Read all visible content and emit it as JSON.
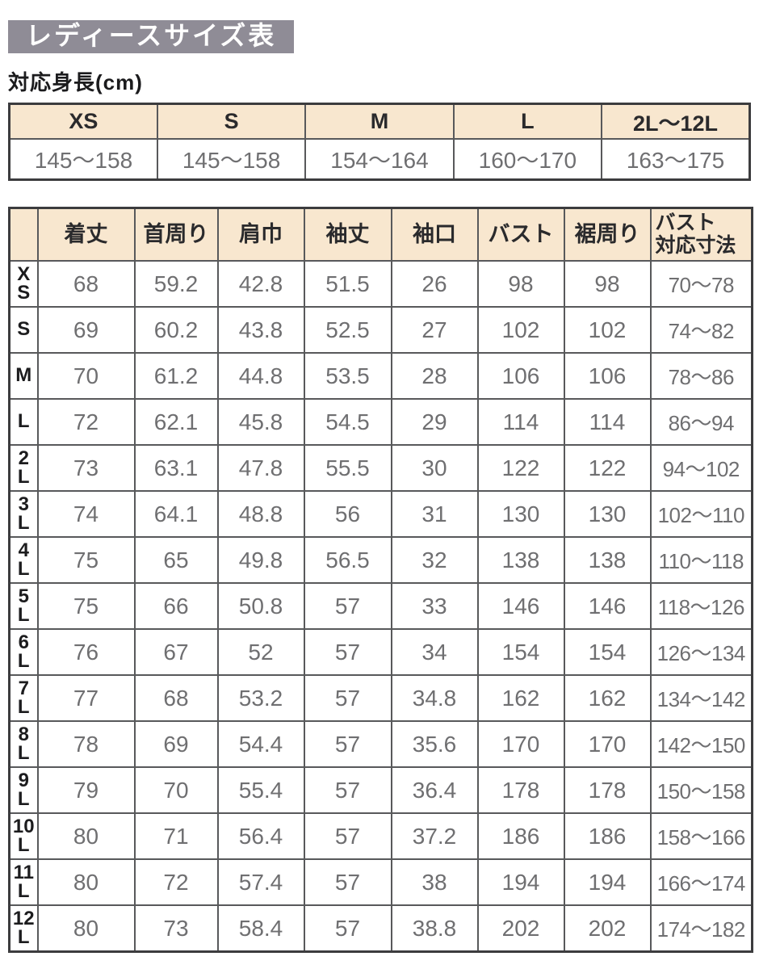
{
  "page": {
    "title": "レディースサイズ表",
    "height_section_label": "対応身長(cm)"
  },
  "colors": {
    "title_bg": "#8f8c96",
    "title_text": "#ffffff",
    "header_bg": "#f8e7cf",
    "grid_border": "#58595b",
    "outer_border": "#3c3c3e",
    "value_text": "#6f6f71",
    "label_text": "#1c1c1e"
  },
  "height_table": {
    "columns": [
      "XS",
      "S",
      "M",
      "L",
      "2L〜12L"
    ],
    "values": [
      "145〜158",
      "145〜158",
      "154〜164",
      "160〜170",
      "163〜175"
    ]
  },
  "size_table": {
    "corner_label": "",
    "columns": [
      "着丈",
      "首周り",
      "肩巾",
      "袖丈",
      "袖口",
      "バスト",
      "裾周り",
      "バスト\n対応寸法"
    ],
    "rows": [
      {
        "size": "XS",
        "size_label": "X\nS",
        "values": [
          "68",
          "59.2",
          "42.8",
          "51.5",
          "26",
          "98",
          "98",
          "70〜78"
        ]
      },
      {
        "size": "S",
        "size_label": "S",
        "values": [
          "69",
          "60.2",
          "43.8",
          "52.5",
          "27",
          "102",
          "102",
          "74〜82"
        ]
      },
      {
        "size": "M",
        "size_label": "M",
        "values": [
          "70",
          "61.2",
          "44.8",
          "53.5",
          "28",
          "106",
          "106",
          "78〜86"
        ]
      },
      {
        "size": "L",
        "size_label": "L",
        "values": [
          "72",
          "62.1",
          "45.8",
          "54.5",
          "29",
          "114",
          "114",
          "86〜94"
        ]
      },
      {
        "size": "2L",
        "size_label": "2\nL",
        "values": [
          "73",
          "63.1",
          "47.8",
          "55.5",
          "30",
          "122",
          "122",
          "94〜102"
        ]
      },
      {
        "size": "3L",
        "size_label": "3\nL",
        "values": [
          "74",
          "64.1",
          "48.8",
          "56",
          "31",
          "130",
          "130",
          "102〜110"
        ]
      },
      {
        "size": "4L",
        "size_label": "4\nL",
        "values": [
          "75",
          "65",
          "49.8",
          "56.5",
          "32",
          "138",
          "138",
          "110〜118"
        ]
      },
      {
        "size": "5L",
        "size_label": "5\nL",
        "values": [
          "75",
          "66",
          "50.8",
          "57",
          "33",
          "146",
          "146",
          "118〜126"
        ]
      },
      {
        "size": "6L",
        "size_label": "6\nL",
        "values": [
          "76",
          "67",
          "52",
          "57",
          "34",
          "154",
          "154",
          "126〜134"
        ]
      },
      {
        "size": "7L",
        "size_label": "7\nL",
        "values": [
          "77",
          "68",
          "53.2",
          "57",
          "34.8",
          "162",
          "162",
          "134〜142"
        ]
      },
      {
        "size": "8L",
        "size_label": "8\nL",
        "values": [
          "78",
          "69",
          "54.4",
          "57",
          "35.6",
          "170",
          "170",
          "142〜150"
        ]
      },
      {
        "size": "9L",
        "size_label": "9\nL",
        "values": [
          "79",
          "70",
          "55.4",
          "57",
          "36.4",
          "178",
          "178",
          "150〜158"
        ]
      },
      {
        "size": "10L",
        "size_label": "10\nL",
        "values": [
          "80",
          "71",
          "56.4",
          "57",
          "37.2",
          "186",
          "186",
          "158〜166"
        ]
      },
      {
        "size": "11L",
        "size_label": "11\nL",
        "values": [
          "80",
          "72",
          "57.4",
          "57",
          "38",
          "194",
          "194",
          "166〜174"
        ]
      },
      {
        "size": "12L",
        "size_label": "12\nL",
        "values": [
          "80",
          "73",
          "58.4",
          "57",
          "38.8",
          "202",
          "202",
          "174〜182"
        ]
      }
    ]
  }
}
